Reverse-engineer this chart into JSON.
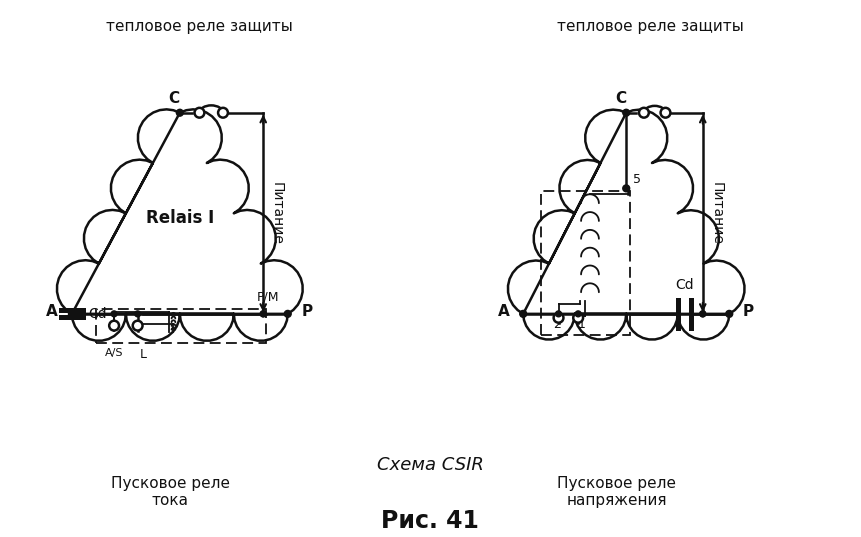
{
  "bg_color": "#ffffff",
  "lc": "#111111",
  "lw": 1.8,
  "lw2": 1.3,
  "left_title": "тепловое реле защиты",
  "right_title": "тепловое реле защиты",
  "pitanie": "Питание",
  "relais": "Relais I",
  "pusk_toka": "Пусковое реле\nтока",
  "pusk_napr": "Пусковое реле\nнапряжения",
  "schema_csir": "Схема CSIR",
  "fig_title": "Рис. 41"
}
